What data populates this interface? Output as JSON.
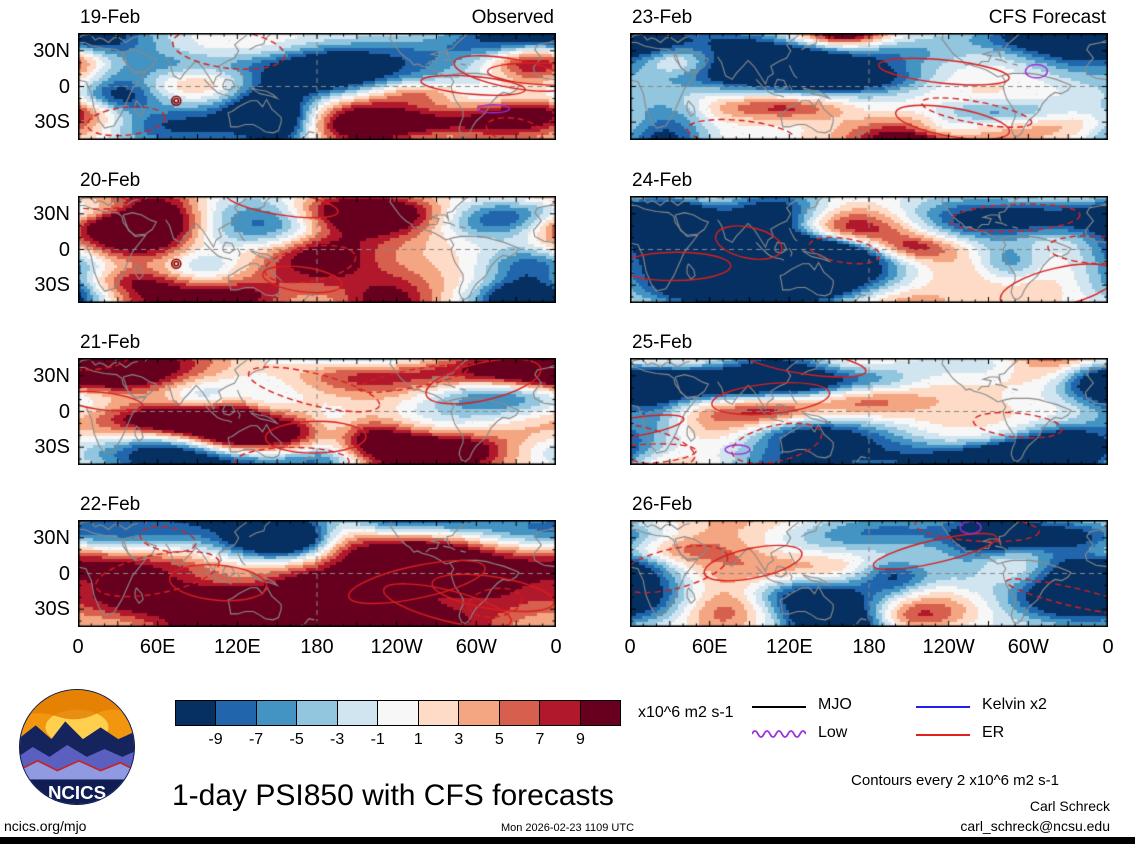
{
  "meta": {
    "site": "ncics.org/mjo",
    "timestamp": "Mon 2026-02-23 1109 UTC",
    "author": "Carl Schreck",
    "email": "carl_schreck@ncsu.edu",
    "logo_text": "NCICS"
  },
  "chart_data": {
    "type": "heatmap",
    "title": "1-day PSI850 with CFS forecasts",
    "variable": "PSI850 anomaly",
    "columns": [
      "Observed",
      "CFS Forecast"
    ],
    "panels": [
      {
        "date": "19-Feb",
        "column": "Observed"
      },
      {
        "date": "20-Feb",
        "column": "Observed"
      },
      {
        "date": "21-Feb",
        "column": "Observed"
      },
      {
        "date": "22-Feb",
        "column": "Observed"
      },
      {
        "date": "23-Feb",
        "column": "CFS Forecast"
      },
      {
        "date": "24-Feb",
        "column": "CFS Forecast"
      },
      {
        "date": "25-Feb",
        "column": "CFS Forecast"
      },
      {
        "date": "26-Feb",
        "column": "CFS Forecast"
      }
    ],
    "x_ticks": [
      "0",
      "60E",
      "120E",
      "180",
      "120W",
      "60W",
      "0"
    ],
    "y_ticks": [
      "30N",
      "0",
      "30S"
    ],
    "lon_range": [
      0,
      360
    ],
    "lat_range": [
      -45,
      45
    ],
    "grid": {
      "equator_dashed": true,
      "dateline_dashed": true
    },
    "colorbar": {
      "levels": [
        -9,
        -7,
        -5,
        -3,
        -1,
        1,
        3,
        5,
        7,
        9
      ],
      "colors": [
        "#053061",
        "#2166ac",
        "#4393c3",
        "#92c5de",
        "#d1e5f0",
        "#f7f7f7",
        "#fddbc7",
        "#f4a582",
        "#d6604d",
        "#b2182b",
        "#67001f"
      ],
      "units": "x10^6 m2 s-1"
    },
    "legend": [
      {
        "label": "MJO",
        "color": "#000000",
        "style": "solid"
      },
      {
        "label": "Low",
        "color": "#9b30d9",
        "style": "wavy"
      },
      {
        "label": "Kelvin x2",
        "color": "#1f1fe8",
        "style": "solid"
      },
      {
        "label": "ER",
        "color": "#e01f1f",
        "style": "solid"
      }
    ],
    "contour_note": "Contours every 2 x10^6 m2 s-1"
  }
}
